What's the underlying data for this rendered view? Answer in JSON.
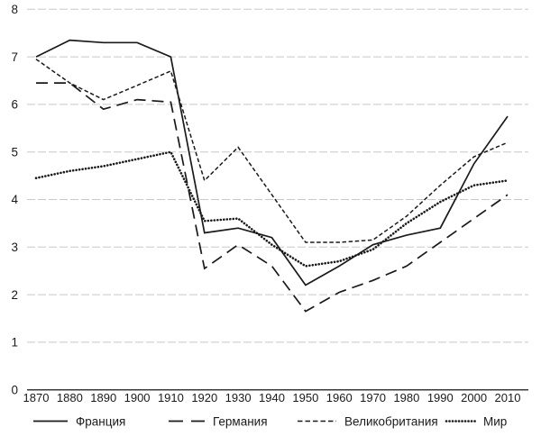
{
  "chart_data": {
    "type": "line",
    "title": "",
    "xlabel": "",
    "ylabel": "",
    "x": [
      1870,
      1880,
      1890,
      1900,
      1910,
      1920,
      1930,
      1940,
      1950,
      1960,
      1970,
      1980,
      1990,
      2000,
      2010
    ],
    "yticks": [
      0,
      1,
      2,
      3,
      4,
      5,
      6,
      7,
      8
    ],
    "ylim": [
      0,
      8
    ],
    "grid": true,
    "legend_position": "bottom",
    "series": [
      {
        "name": "Франция",
        "line_style": "solid",
        "values": [
          7.0,
          7.35,
          7.3,
          7.3,
          7.0,
          3.3,
          3.4,
          3.2,
          2.2,
          2.6,
          3.05,
          3.25,
          3.4,
          4.75,
          5.75
        ]
      },
      {
        "name": "Германия",
        "line_style": "long-dash",
        "values": [
          6.45,
          6.45,
          5.9,
          6.1,
          6.05,
          2.55,
          3.05,
          2.6,
          1.65,
          2.05,
          2.3,
          2.6,
          3.1,
          3.6,
          4.1
        ]
      },
      {
        "name": "Великобритания",
        "line_style": "short-dash",
        "values": [
          6.95,
          6.45,
          6.1,
          6.4,
          6.7,
          4.4,
          5.1,
          4.1,
          3.1,
          3.1,
          3.15,
          3.65,
          4.3,
          4.9,
          5.2
        ]
      },
      {
        "name": "Мир",
        "line_style": "dotted",
        "values": [
          4.45,
          4.6,
          4.7,
          4.85,
          5.0,
          3.55,
          3.6,
          3.05,
          2.6,
          2.7,
          2.95,
          3.5,
          3.95,
          4.3,
          4.4
        ]
      }
    ],
    "colors": {
      "line": "#1a1a1a",
      "grid": "#c8c8c8",
      "axis": "#3a3a3a",
      "background": "#ffffff"
    }
  }
}
